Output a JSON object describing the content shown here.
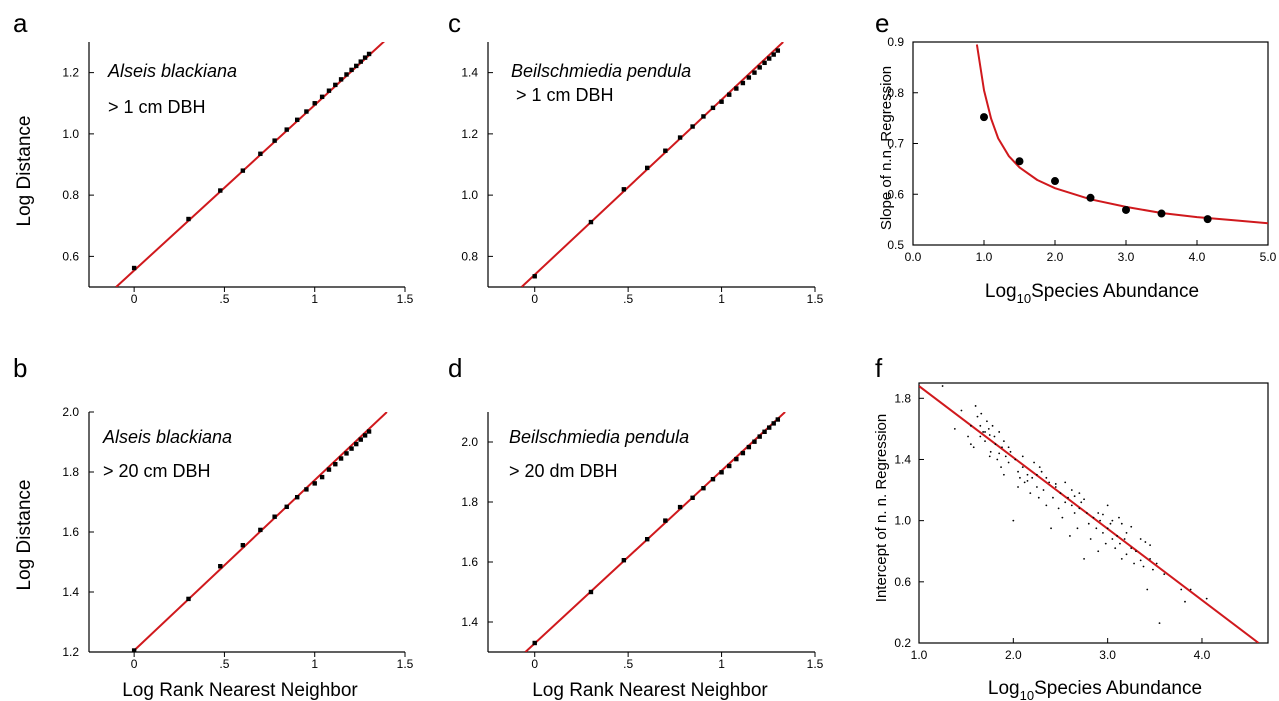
{
  "figure": {
    "panels": [
      {
        "letter": "a",
        "species": "Alseis blackiana",
        "size_class": "> 1 cm DBH",
        "ylabel": "Log Distance",
        "xlabel": ""
      },
      {
        "letter": "b",
        "species": "Alseis blackiana",
        "size_class": "> 20 cm DBH",
        "ylabel": "Log Distance",
        "xlabel": "Log Rank Nearest Neighbor"
      },
      {
        "letter": "c",
        "species": "Beilschmiedia pendula",
        "size_class": "> 1 cm DBH",
        "ylabel": "",
        "xlabel": ""
      },
      {
        "letter": "d",
        "species": "Beilschmiedia pendula",
        "size_class": "> 20 dm DBH",
        "ylabel": "",
        "xlabel": "Log Rank Nearest Neighbor"
      },
      {
        "letter": "e",
        "species": "",
        "size_class": "",
        "ylabel": "Slope of  n.n. Regression",
        "xlabel_prefix": "Log",
        "xlabel_sub": "10",
        "xlabel_suffix": "Species Abundance"
      },
      {
        "letter": "f",
        "species": "",
        "size_class": "",
        "ylabel": "Intercept of n. n. Regression",
        "xlabel_prefix": "Log",
        "xlabel_sub": "10",
        "xlabel_suffix": "Species Abundance"
      }
    ],
    "colors": {
      "fit_line": "#d0191d",
      "points": "#000000",
      "axes": "#000000"
    }
  },
  "chart_data": [
    {
      "panel": "a",
      "type": "line",
      "title": "Alseis blackiana > 1 cm DBH",
      "xlabel": "",
      "ylabel": "Log Distance",
      "xlim": [
        -0.25,
        1.5
      ],
      "ylim": [
        0.5,
        1.3
      ],
      "xticks": [
        0,
        0.5,
        1,
        1.5
      ],
      "xtick_labels": [
        "0",
        ".5",
        "1",
        "1.5"
      ],
      "yticks": [
        0.6,
        0.8,
        1.0,
        1.2
      ],
      "ytick_labels": [
        "0.6",
        "0.8",
        "1.0",
        "1.2"
      ],
      "fit": {
        "x": [
          -0.1,
          1.4
        ],
        "y": [
          0.5,
          1.31
        ]
      },
      "points": {
        "x": [
          0,
          0.301,
          0.477,
          0.602,
          0.699,
          0.778,
          0.845,
          0.903,
          0.954,
          1.0,
          1.041,
          1.079,
          1.114,
          1.146,
          1.176,
          1.204,
          1.23,
          1.255,
          1.279,
          1.301
        ],
        "y": [
          0.562,
          0.722,
          0.815,
          0.88,
          0.935,
          0.978,
          1.014,
          1.046,
          1.073,
          1.1,
          1.121,
          1.141,
          1.16,
          1.178,
          1.194,
          1.209,
          1.222,
          1.236,
          1.249,
          1.261
        ]
      }
    },
    {
      "panel": "b",
      "type": "line",
      "title": "Alseis blackiana > 20 cm DBH",
      "xlabel": "Log Rank Nearest Neighbor",
      "ylabel": "Log Distance",
      "xlim": [
        -0.25,
        1.5
      ],
      "ylim": [
        1.2,
        2.0
      ],
      "xticks": [
        0,
        0.5,
        1,
        1.5
      ],
      "xtick_labels": [
        "0",
        ".5",
        "1",
        "1.5"
      ],
      "yticks": [
        1.2,
        1.4,
        1.6,
        1.8,
        2.0
      ],
      "ytick_labels": [
        "1.2",
        "1.4",
        "1.6",
        "1.8",
        "2.0"
      ],
      "fit": {
        "x": [
          0,
          1.4
        ],
        "y": [
          1.205,
          2.0
        ]
      },
      "points": {
        "x": [
          0,
          0.301,
          0.477,
          0.602,
          0.699,
          0.778,
          0.845,
          0.903,
          0.954,
          1.0,
          1.041,
          1.079,
          1.114,
          1.146,
          1.176,
          1.204,
          1.23,
          1.255,
          1.279,
          1.301
        ],
        "y": [
          1.205,
          1.377,
          1.486,
          1.556,
          1.607,
          1.651,
          1.684,
          1.716,
          1.742,
          1.762,
          1.783,
          1.808,
          1.826,
          1.845,
          1.862,
          1.878,
          1.893,
          1.908,
          1.922,
          1.935
        ]
      }
    },
    {
      "panel": "c",
      "type": "line",
      "title": "Beilschmiedia pendula > 1 cm DBH",
      "xlabel": "",
      "ylabel": "",
      "xlim": [
        -0.25,
        1.5
      ],
      "ylim": [
        0.7,
        1.5
      ],
      "xticks": [
        0,
        0.5,
        1,
        1.5
      ],
      "xtick_labels": [
        "0",
        ".5",
        "1",
        "1.5"
      ],
      "yticks": [
        0.8,
        1.0,
        1.2,
        1.4
      ],
      "ytick_labels": [
        "0.8",
        "1.0",
        "1.2",
        "1.4"
      ],
      "fit": {
        "x": [
          -0.07,
          1.33
        ],
        "y": [
          0.7,
          1.5
        ]
      },
      "points": {
        "x": [
          0,
          0.301,
          0.477,
          0.602,
          0.699,
          0.778,
          0.845,
          0.903,
          0.954,
          1.0,
          1.041,
          1.079,
          1.114,
          1.146,
          1.176,
          1.204,
          1.23,
          1.255,
          1.279,
          1.301
        ],
        "y": [
          0.735,
          0.912,
          1.019,
          1.089,
          1.145,
          1.188,
          1.224,
          1.257,
          1.285,
          1.305,
          1.328,
          1.348,
          1.366,
          1.384,
          1.4,
          1.417,
          1.432,
          1.446,
          1.459,
          1.472
        ]
      }
    },
    {
      "panel": "d",
      "type": "line",
      "title": "Beilschmiedia pendula > 20 dm DBH",
      "xlabel": "Log Rank Nearest Neighbor",
      "ylabel": "",
      "xlim": [
        -0.25,
        1.5
      ],
      "ylim": [
        1.3,
        2.1
      ],
      "xticks": [
        0,
        0.5,
        1,
        1.5
      ],
      "xtick_labels": [
        "0",
        ".5",
        "1",
        "1.5"
      ],
      "yticks": [
        1.4,
        1.6,
        1.8,
        2.0
      ],
      "ytick_labels": [
        "1.4",
        "1.6",
        "1.8",
        "2.0"
      ],
      "fit": {
        "x": [
          -0.05,
          1.34
        ],
        "y": [
          1.3,
          2.1
        ]
      },
      "points": {
        "x": [
          0,
          0.301,
          0.477,
          0.602,
          0.699,
          0.778,
          0.845,
          0.903,
          0.954,
          1.0,
          1.041,
          1.079,
          1.114,
          1.146,
          1.176,
          1.204,
          1.23,
          1.255,
          1.279,
          1.301
        ],
        "y": [
          1.33,
          1.5,
          1.606,
          1.676,
          1.738,
          1.783,
          1.814,
          1.846,
          1.876,
          1.899,
          1.92,
          1.943,
          1.963,
          1.983,
          2.001,
          2.018,
          2.034,
          2.048,
          2.062,
          2.075
        ]
      }
    },
    {
      "panel": "e",
      "type": "scatter",
      "title": "",
      "xlabel": "Log10 Species Abundance",
      "ylabel": "Slope of  n.n. Regression",
      "xlim": [
        0.0,
        5.0
      ],
      "ylim": [
        0.5,
        0.9
      ],
      "xticks": [
        0.0,
        1.0,
        2.0,
        3.0,
        4.0,
        5.0
      ],
      "xtick_labels": [
        "0.0",
        "1.0",
        "2.0",
        "3.0",
        "4.0",
        "5.0"
      ],
      "yticks": [
        0.5,
        0.6,
        0.7,
        0.8,
        0.9
      ],
      "ytick_labels": [
        "0.5",
        "0.6",
        "0.7",
        "0.8",
        "0.9"
      ],
      "points": {
        "x": [
          1.0,
          1.5,
          2.0,
          2.5,
          3.0,
          3.5,
          4.15
        ],
        "y": [
          0.752,
          0.665,
          0.626,
          0.593,
          0.569,
          0.562,
          0.551
        ]
      },
      "fit": {
        "x": [
          0.9,
          1.0,
          1.1,
          1.2,
          1.35,
          1.5,
          1.75,
          2.0,
          2.5,
          3.0,
          3.5,
          4.0,
          4.5,
          5.0
        ],
        "y": [
          0.895,
          0.805,
          0.749,
          0.71,
          0.675,
          0.653,
          0.628,
          0.612,
          0.59,
          0.575,
          0.563,
          0.555,
          0.549,
          0.543
        ]
      }
    },
    {
      "panel": "f",
      "type": "scatter",
      "title": "",
      "xlabel": "Log10 Species Abundance",
      "ylabel": "Intercept of n. n. Regression",
      "xlim": [
        1.0,
        4.7
      ],
      "ylim": [
        0.2,
        1.9
      ],
      "xticks": [
        1.0,
        2.0,
        3.0,
        4.0
      ],
      "xtick_labels": [
        "1.0",
        "2.0",
        "3.0",
        "4.0"
      ],
      "yticks": [
        0.2,
        0.6,
        1.0,
        1.4,
        1.8
      ],
      "ytick_labels": [
        "0.2",
        "0.6",
        "1.0",
        "1.4",
        "1.8"
      ],
      "fit": {
        "x": [
          1.0,
          4.6
        ],
        "y": [
          1.88,
          0.2
        ]
      },
      "points": {
        "x": [
          1.25,
          1.32,
          1.38,
          1.45,
          1.52,
          1.55,
          1.58,
          1.6,
          1.62,
          1.65,
          1.66,
          1.68,
          1.7,
          1.72,
          1.74,
          1.75,
          1.76,
          1.78,
          1.8,
          1.81,
          1.83,
          1.85,
          1.87,
          1.88,
          1.9,
          1.92,
          1.95,
          1.97,
          2.0,
          2.02,
          2.05,
          2.07,
          2.1,
          2.12,
          2.15,
          2.18,
          2.2,
          2.22,
          2.25,
          2.27,
          2.3,
          2.32,
          2.35,
          2.38,
          2.4,
          2.42,
          2.45,
          2.48,
          2.5,
          2.52,
          2.55,
          2.58,
          2.6,
          2.62,
          2.65,
          2.68,
          2.7,
          2.72,
          2.75,
          2.78,
          2.8,
          2.82,
          2.85,
          2.88,
          2.9,
          2.92,
          2.95,
          2.98,
          3.0,
          3.03,
          3.05,
          3.08,
          3.1,
          3.13,
          3.15,
          3.18,
          3.2,
          3.25,
          3.28,
          3.3,
          3.35,
          3.38,
          3.42,
          3.45,
          3.48,
          3.52,
          3.55,
          3.6,
          3.78,
          3.82,
          3.88,
          4.05,
          1.7,
          1.75,
          1.9,
          2.05,
          2.1,
          2.28,
          2.35,
          2.55,
          2.62,
          2.7,
          2.9,
          3.05,
          3.12,
          3.2,
          3.35,
          3.45,
          1.55,
          1.95,
          2.15,
          2.45,
          2.75,
          3.0,
          3.25,
          3.4,
          1.65,
          1.85,
          2.25,
          2.65,
          2.95,
          3.15
        ],
        "y": [
          1.88,
          1.92,
          1.6,
          1.72,
          1.55,
          1.5,
          1.48,
          1.75,
          1.68,
          1.62,
          1.7,
          1.58,
          1.52,
          1.65,
          1.6,
          1.56,
          1.45,
          1.62,
          1.55,
          1.5,
          1.4,
          1.58,
          1.35,
          1.48,
          1.52,
          1.42,
          1.38,
          1.45,
          1.0,
          1.4,
          1.32,
          1.28,
          1.35,
          1.25,
          1.3,
          1.18,
          1.28,
          1.38,
          1.22,
          1.15,
          1.32,
          1.2,
          1.1,
          1.25,
          0.95,
          1.15,
          1.22,
          1.08,
          1.18,
          1.02,
          1.12,
          1.15,
          0.9,
          1.1,
          1.05,
          0.95,
          1.08,
          1.12,
          0.75,
          1.05,
          0.98,
          0.88,
          1.02,
          0.95,
          0.8,
          1.0,
          0.92,
          0.85,
          0.95,
          0.98,
          0.88,
          0.82,
          0.9,
          0.85,
          0.75,
          0.88,
          0.78,
          0.82,
          0.72,
          0.8,
          0.74,
          0.7,
          0.55,
          0.75,
          0.68,
          0.72,
          0.33,
          0.65,
          0.55,
          0.47,
          0.55,
          0.49,
          1.58,
          1.42,
          1.3,
          1.22,
          1.42,
          1.35,
          1.28,
          1.25,
          1.2,
          1.18,
          1.05,
          1.0,
          1.02,
          0.92,
          0.88,
          0.84,
          1.62,
          1.48,
          1.26,
          1.24,
          1.14,
          1.1,
          0.96,
          0.86,
          1.55,
          1.44,
          1.3,
          1.16,
          1.04,
          0.98
        ]
      }
    }
  ]
}
